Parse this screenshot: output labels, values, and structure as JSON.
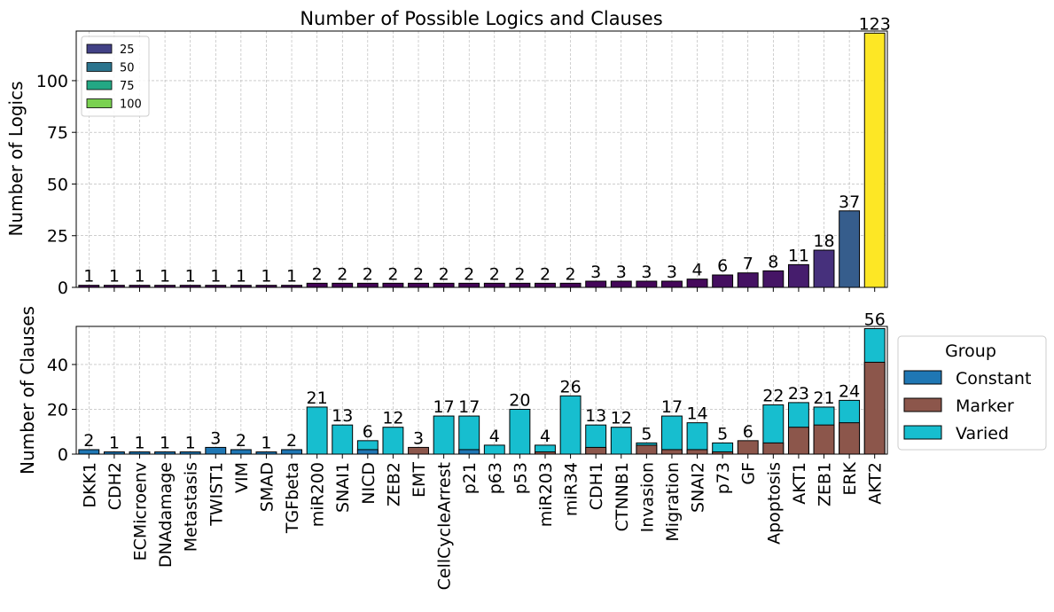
{
  "chart_data": [
    {
      "type": "bar",
      "title": "Number of Possible Logics and Clauses",
      "ylabel": "Number of Logics",
      "xlabel": "",
      "ylim": [
        0,
        124
      ],
      "yticks": [
        0,
        25,
        50,
        75,
        100
      ],
      "grid": true,
      "color_scale": "viridis",
      "color_range": [
        1,
        123
      ],
      "categories": [
        "DKK1",
        "CDH2",
        "ECMicroenv",
        "DNAdamage",
        "Metastasis",
        "TWIST1",
        "VIM",
        "SMAD",
        "TGFbeta",
        "miR200",
        "SNAI1",
        "NICD",
        "ZEB2",
        "EMT",
        "CellCycleArrest",
        "p21",
        "p63",
        "p53",
        "miR203",
        "miR34",
        "CDH1",
        "CTNNB1",
        "Invasion",
        "Migration",
        "SNAI2",
        "p73",
        "GF",
        "Apoptosis",
        "AKT1",
        "ZEB1",
        "ERK",
        "AKT2"
      ],
      "values": [
        1,
        1,
        1,
        1,
        1,
        1,
        1,
        1,
        1,
        2,
        2,
        2,
        2,
        2,
        2,
        2,
        2,
        2,
        2,
        2,
        3,
        3,
        3,
        3,
        4,
        6,
        7,
        8,
        11,
        18,
        37,
        123
      ],
      "legend": {
        "placement": "upper-left",
        "entries": [
          {
            "label": "25",
            "color": "#424186"
          },
          {
            "label": "50",
            "color": "#2b748e"
          },
          {
            "label": "75",
            "color": "#23a884"
          },
          {
            "label": "100",
            "color": "#7ad151"
          }
        ]
      }
    },
    {
      "type": "bar",
      "stacked": true,
      "ylabel": "Number of Clauses",
      "xlabel": "",
      "ylim": [
        0,
        57
      ],
      "yticks": [
        0,
        20,
        40
      ],
      "grid": true,
      "categories": [
        "DKK1",
        "CDH2",
        "ECMicroenv",
        "DNAdamage",
        "Metastasis",
        "TWIST1",
        "VIM",
        "SMAD",
        "TGFbeta",
        "miR200",
        "SNAI1",
        "NICD",
        "ZEB2",
        "EMT",
        "CellCycleArrest",
        "p21",
        "p63",
        "p53",
        "miR203",
        "miR34",
        "CDH1",
        "CTNNB1",
        "Invasion",
        "Migration",
        "SNAI2",
        "p73",
        "GF",
        "Apoptosis",
        "AKT1",
        "ZEB1",
        "ERK",
        "AKT2"
      ],
      "totals": [
        2,
        1,
        1,
        1,
        1,
        3,
        2,
        1,
        2,
        21,
        13,
        6,
        12,
        3,
        17,
        17,
        4,
        20,
        4,
        26,
        13,
        12,
        5,
        17,
        14,
        5,
        6,
        22,
        23,
        21,
        24,
        56
      ],
      "series": [
        {
          "name": "Constant",
          "color": "#1f77b4",
          "values": [
            2,
            1,
            1,
            1,
            1,
            3,
            2,
            1,
            2,
            0,
            0,
            2,
            0,
            0,
            0,
            2,
            0,
            0,
            0,
            0,
            0,
            0,
            0,
            0,
            0,
            0,
            0,
            0,
            0,
            0,
            0,
            0
          ]
        },
        {
          "name": "Marker",
          "color": "#8c564b",
          "values": [
            0,
            0,
            0,
            0,
            0,
            0,
            0,
            0,
            0,
            0,
            0,
            0,
            0,
            3,
            0,
            0,
            0,
            0,
            1,
            0,
            3,
            0,
            4,
            2,
            2,
            1,
            6,
            5,
            12,
            13,
            14,
            41
          ]
        },
        {
          "name": "Varied",
          "color": "#17becf",
          "values": [
            0,
            0,
            0,
            0,
            0,
            0,
            0,
            0,
            0,
            21,
            13,
            4,
            12,
            0,
            17,
            15,
            4,
            20,
            3,
            26,
            10,
            12,
            1,
            15,
            12,
            4,
            0,
            17,
            11,
            8,
            10,
            15
          ]
        }
      ],
      "legend": {
        "title": "Group",
        "placement": "outside-right"
      }
    }
  ]
}
